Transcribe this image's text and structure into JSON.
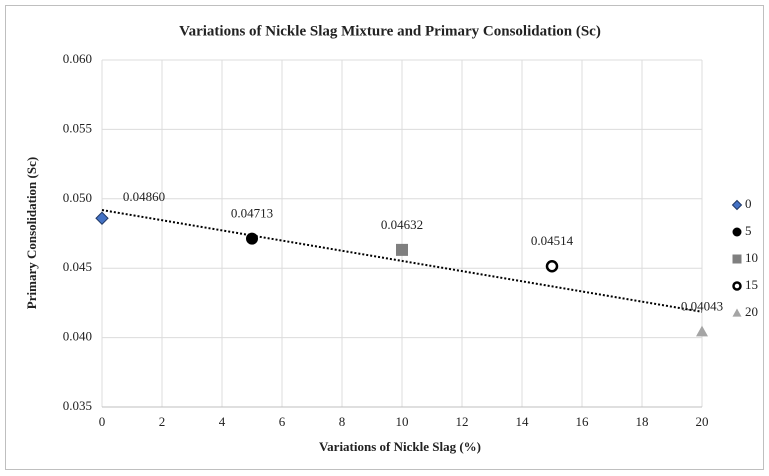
{
  "chart_data": {
    "type": "scatter",
    "title": "Variations of Nickle Slag Mixture and Primary Consolidation (Sc)",
    "x_label": "Variations of Nickle Slag (%)",
    "y_label": "Primary Consolidation (Sc)",
    "xlim": [
      0,
      20
    ],
    "xticks": [
      0,
      2,
      4,
      6,
      8,
      10,
      12,
      14,
      16,
      18,
      20
    ],
    "ylim": [
      0.035,
      0.06
    ],
    "yticks": [
      0.035,
      {
        "value": 0.04,
        "label": "0.040"
      },
      0.045,
      {
        "value": 0.05,
        "label": "0.050"
      },
      0.055,
      {
        "value": 0.06,
        "label": "0.060"
      }
    ],
    "grid": true,
    "legend": "right",
    "trendline": "linear",
    "series": [
      {
        "name": "0",
        "color": "#4472c4",
        "marker": "diamond",
        "x": [
          0
        ],
        "values": [
          0.0486
        ],
        "value_labels": [
          "0.04860"
        ]
      },
      {
        "name": "5",
        "color": "#000000",
        "marker": "circle",
        "x": [
          5
        ],
        "values": [
          0.04713
        ]
      },
      {
        "name": "10",
        "color": "#7f7f7f",
        "marker": "square",
        "x": [
          10
        ],
        "values": [
          0.04632
        ]
      },
      {
        "name": "15",
        "color": "#000000",
        "marker": "circle-open",
        "x": [
          15
        ],
        "values": [
          0.04514
        ]
      },
      {
        "name": "20",
        "color": "#a5a5a5",
        "marker": "triangle",
        "x": [
          20
        ],
        "values": [
          0.04043
        ]
      }
    ]
  }
}
